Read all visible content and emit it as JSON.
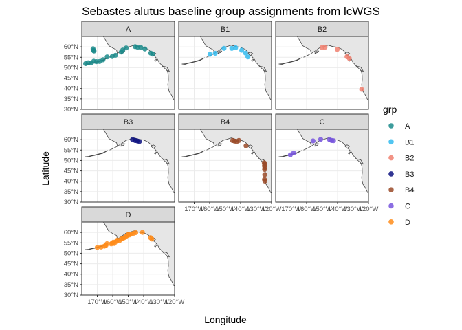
{
  "chart_data": {
    "type": "scatter",
    "title": "Sebastes alutus baseline group assignments from lcWGS",
    "xlabel": "Longitude",
    "ylabel": "Latitude",
    "xlim": [
      -180,
      -120
    ],
    "ylim": [
      30,
      65
    ],
    "x_ticks": [
      -170,
      -160,
      -150,
      -140,
      -130,
      -120
    ],
    "x_tick_labels": [
      "170°W",
      "160°W",
      "150°W",
      "140°W",
      "130°W",
      "120°W"
    ],
    "y_ticks": [
      30,
      35,
      40,
      45,
      50,
      55,
      60
    ],
    "y_tick_labels": [
      "30°N",
      "35°N",
      "40°N",
      "45°N",
      "50°N",
      "55°N",
      "60°N"
    ],
    "grid": true,
    "basemap": "North Pacific coastline (grey land)",
    "legend": {
      "title": "grp",
      "placement": "right",
      "entries": [
        {
          "label": "A",
          "color": "#1b8b8b"
        },
        {
          "label": "B1",
          "color": "#33bbee"
        },
        {
          "label": "B2",
          "color": "#f08070"
        },
        {
          "label": "B3",
          "color": "#0d1280"
        },
        {
          "label": "B4",
          "color": "#9a4a28"
        },
        {
          "label": "C",
          "color": "#7755dd"
        },
        {
          "label": "D",
          "color": "#ff8c1a"
        }
      ]
    },
    "series": [
      {
        "name": "A",
        "color": "#1b8b8b",
        "points": [
          [
            -172.7,
            59.1
          ],
          [
            -172.5,
            58.3
          ],
          [
            -172.1,
            58.0
          ],
          [
            -177.5,
            52.0
          ],
          [
            -175.8,
            52.4
          ],
          [
            -173.9,
            52.3
          ],
          [
            -172.3,
            53.1
          ],
          [
            -170.6,
            52.9
          ],
          [
            -168.5,
            53.0
          ],
          [
            -166.3,
            53.8
          ],
          [
            -163.6,
            55.2
          ],
          [
            -160.3,
            55.4
          ],
          [
            -158.2,
            56.0
          ],
          [
            -154.5,
            57.5
          ],
          [
            -153.5,
            58.5
          ],
          [
            -151.3,
            59.5
          ],
          [
            -145.5,
            60.1
          ],
          [
            -143.9,
            59.8
          ],
          [
            -141.8,
            59.7
          ],
          [
            -139.2,
            59.0
          ],
          [
            -135.4,
            57.0
          ],
          [
            -134.2,
            56.5
          ]
        ]
      },
      {
        "name": "B1",
        "color": "#33bbee",
        "points": [
          [
            -159.8,
            56.4
          ],
          [
            -156.4,
            56.9
          ],
          [
            -150.7,
            59.3
          ],
          [
            -145.7,
            59.3
          ],
          [
            -143.2,
            59.6
          ],
          [
            -139.3,
            58.4
          ],
          [
            -136.8,
            57.0
          ],
          [
            -135.3,
            55.2
          ]
        ]
      },
      {
        "name": "B2",
        "color": "#f08070",
        "points": [
          [
            -150.0,
            59.7
          ],
          [
            -148.1,
            59.8
          ],
          [
            -140.2,
            58.8
          ],
          [
            -133.9,
            55.3
          ],
          [
            -132.4,
            54.5
          ],
          [
            -124.4,
            39.6
          ]
        ]
      },
      {
        "name": "B3",
        "color": "#0d1280",
        "points": [
          [
            -147.2,
            60.0
          ],
          [
            -145.5,
            59.6
          ],
          [
            -144.2,
            59.4
          ],
          [
            -142.8,
            59.1
          ]
        ]
      },
      {
        "name": "B4",
        "color": "#9a4a28",
        "points": [
          [
            -145.2,
            59.6
          ],
          [
            -143.9,
            59.3
          ],
          [
            -142.5,
            59.1
          ],
          [
            -141.1,
            59.6
          ],
          [
            -136.5,
            57.0
          ],
          [
            -124.7,
            48.9
          ],
          [
            -124.5,
            48.3
          ],
          [
            -124.6,
            47.4
          ],
          [
            -124.3,
            46.6
          ],
          [
            -124.5,
            45.7
          ],
          [
            -124.4,
            43.2
          ],
          [
            -124.6,
            40.9
          ],
          [
            -124.3,
            40.1
          ]
        ]
      },
      {
        "name": "C",
        "color": "#7755dd",
        "points": [
          [
            -170.5,
            52.7
          ],
          [
            -168.4,
            53.6
          ],
          [
            -155.8,
            59.4
          ],
          [
            -150.9,
            60.1
          ],
          [
            -145.2,
            60.0
          ],
          [
            -143.8,
            59.6
          ],
          [
            -142.6,
            59.5
          ]
        ]
      },
      {
        "name": "D",
        "color": "#ff8c1a",
        "points": [
          [
            -170.0,
            52.8
          ],
          [
            -167.5,
            53.0
          ],
          [
            -165.4,
            53.4
          ],
          [
            -164.4,
            53.8
          ],
          [
            -163.7,
            54.6
          ],
          [
            -161.0,
            54.5
          ],
          [
            -160.3,
            54.9
          ],
          [
            -159.6,
            55.3
          ],
          [
            -159.0,
            54.7
          ],
          [
            -157.7,
            55.7
          ],
          [
            -157.0,
            56.3
          ],
          [
            -155.7,
            56.0
          ],
          [
            -154.5,
            56.8
          ],
          [
            -153.4,
            57.1
          ],
          [
            -152.4,
            57.5
          ],
          [
            -151.5,
            58.0
          ],
          [
            -150.6,
            58.5
          ],
          [
            -150.0,
            59.0
          ],
          [
            -149.2,
            58.8
          ],
          [
            -148.0,
            59.2
          ],
          [
            -146.5,
            59.6
          ],
          [
            -145.1,
            59.9
          ],
          [
            -140.8,
            60.0
          ],
          [
            -135.6,
            57.5
          ],
          [
            -134.7,
            56.8
          ]
        ]
      }
    ],
    "panels": [
      "A",
      "B1",
      "B2",
      "B3",
      "B4",
      "C",
      "D"
    ]
  }
}
